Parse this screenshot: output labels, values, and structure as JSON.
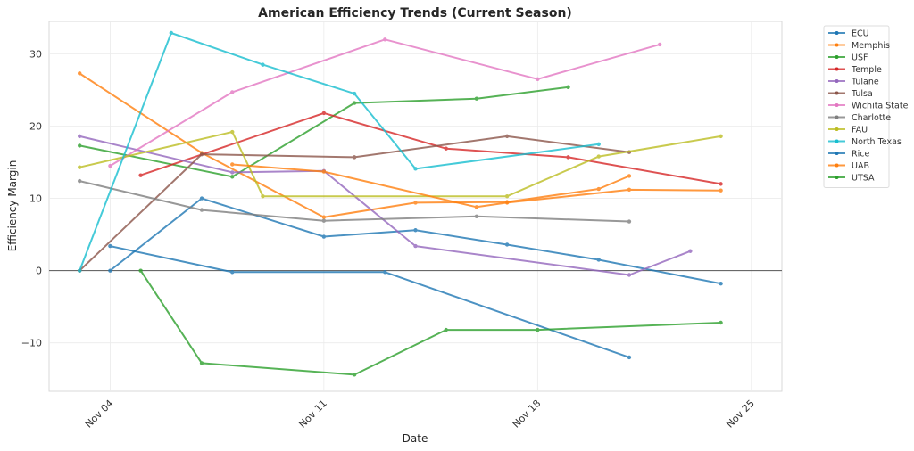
{
  "chart_data": {
    "type": "line",
    "title": "American Efficiency Trends (Current Season)",
    "xlabel": "Date",
    "ylabel": "Efficiency Margin",
    "x_unit": "day of November",
    "xlim": [
      2,
      26
    ],
    "ylim": [
      -16.7,
      34.5
    ],
    "xticks": [
      {
        "day": 4,
        "label": "Nov 04"
      },
      {
        "day": 11,
        "label": "Nov 11"
      },
      {
        "day": 18,
        "label": "Nov 18"
      },
      {
        "day": 25,
        "label": "Nov 25"
      }
    ],
    "yticks": [
      -10,
      0,
      10,
      20,
      30
    ],
    "grid": true,
    "zero_line": true,
    "legend_position": "outside-top-right",
    "series": [
      {
        "name": "ECU",
        "color": "#1f77b4",
        "points": [
          [
            4,
            0
          ],
          [
            7,
            10.0
          ],
          [
            11,
            4.7
          ],
          [
            14,
            5.6
          ],
          [
            17,
            3.6
          ],
          [
            20,
            1.5
          ],
          [
            24,
            -1.8
          ]
        ]
      },
      {
        "name": "Memphis",
        "color": "#ff7f0e",
        "points": [
          [
            3,
            27.3
          ],
          [
            7,
            16.3
          ],
          [
            11,
            7.4
          ],
          [
            14,
            9.4
          ],
          [
            17,
            9.5
          ],
          [
            20,
            11.3
          ],
          [
            21,
            13.1
          ]
        ]
      },
      {
        "name": "USF",
        "color": "#2ca02c",
        "points": [
          [
            3,
            17.3
          ],
          [
            8,
            13.0
          ],
          [
            12,
            23.2
          ],
          [
            16,
            23.8
          ],
          [
            19,
            25.4
          ]
        ]
      },
      {
        "name": "Temple",
        "color": "#d62728",
        "points": [
          [
            5,
            13.2
          ],
          [
            11,
            21.8
          ],
          [
            15,
            16.9
          ],
          [
            19,
            15.7
          ],
          [
            24,
            12.0
          ]
        ]
      },
      {
        "name": "Tulane",
        "color": "#9467bd",
        "points": [
          [
            3,
            18.6
          ],
          [
            8,
            13.6
          ],
          [
            11,
            13.8
          ],
          [
            14,
            3.4
          ],
          [
            21,
            -0.6
          ],
          [
            23,
            2.7
          ]
        ]
      },
      {
        "name": "Tulsa",
        "color": "#8c564b",
        "points": [
          [
            3,
            0
          ],
          [
            7,
            16.1
          ],
          [
            12,
            15.7
          ],
          [
            17,
            18.6
          ],
          [
            21,
            16.4
          ]
        ]
      },
      {
        "name": "Wichita State",
        "color": "#e377c2",
        "points": [
          [
            4,
            14.5
          ],
          [
            8,
            24.7
          ],
          [
            13,
            32.0
          ],
          [
            18,
            26.5
          ],
          [
            22,
            31.3
          ]
        ]
      },
      {
        "name": "Charlotte",
        "color": "#7f7f7f",
        "points": [
          [
            3,
            12.4
          ],
          [
            7,
            8.4
          ],
          [
            11,
            6.9
          ],
          [
            16,
            7.5
          ],
          [
            21,
            6.8
          ]
        ]
      },
      {
        "name": "FAU",
        "color": "#bcbd22",
        "points": [
          [
            3,
            14.3
          ],
          [
            8,
            19.2
          ],
          [
            9,
            10.3
          ],
          [
            17,
            10.3
          ],
          [
            20,
            15.8
          ],
          [
            24,
            18.6
          ]
        ]
      },
      {
        "name": "North Texas",
        "color": "#17becf",
        "points": [
          [
            3,
            0
          ],
          [
            6,
            32.9
          ],
          [
            9,
            28.5
          ],
          [
            12,
            24.5
          ],
          [
            14,
            14.1
          ],
          [
            20,
            17.5
          ]
        ]
      },
      {
        "name": "Rice",
        "color": "#1f77b4",
        "points": [
          [
            4,
            3.4
          ],
          [
            8,
            -0.2
          ],
          [
            13,
            -0.2
          ],
          [
            21,
            -12.0
          ]
        ]
      },
      {
        "name": "UAB",
        "color": "#ff7f0e",
        "points": [
          [
            8,
            14.7
          ],
          [
            11,
            13.7
          ],
          [
            16,
            8.8
          ],
          [
            17,
            9.4
          ],
          [
            21,
            11.2
          ],
          [
            24,
            11.1
          ]
        ]
      },
      {
        "name": "UTSA",
        "color": "#2ca02c",
        "points": [
          [
            5,
            0
          ],
          [
            7,
            -12.8
          ],
          [
            12,
            -14.4
          ],
          [
            15,
            -8.2
          ],
          [
            18,
            -8.2
          ],
          [
            24,
            -7.2
          ]
        ]
      }
    ]
  }
}
